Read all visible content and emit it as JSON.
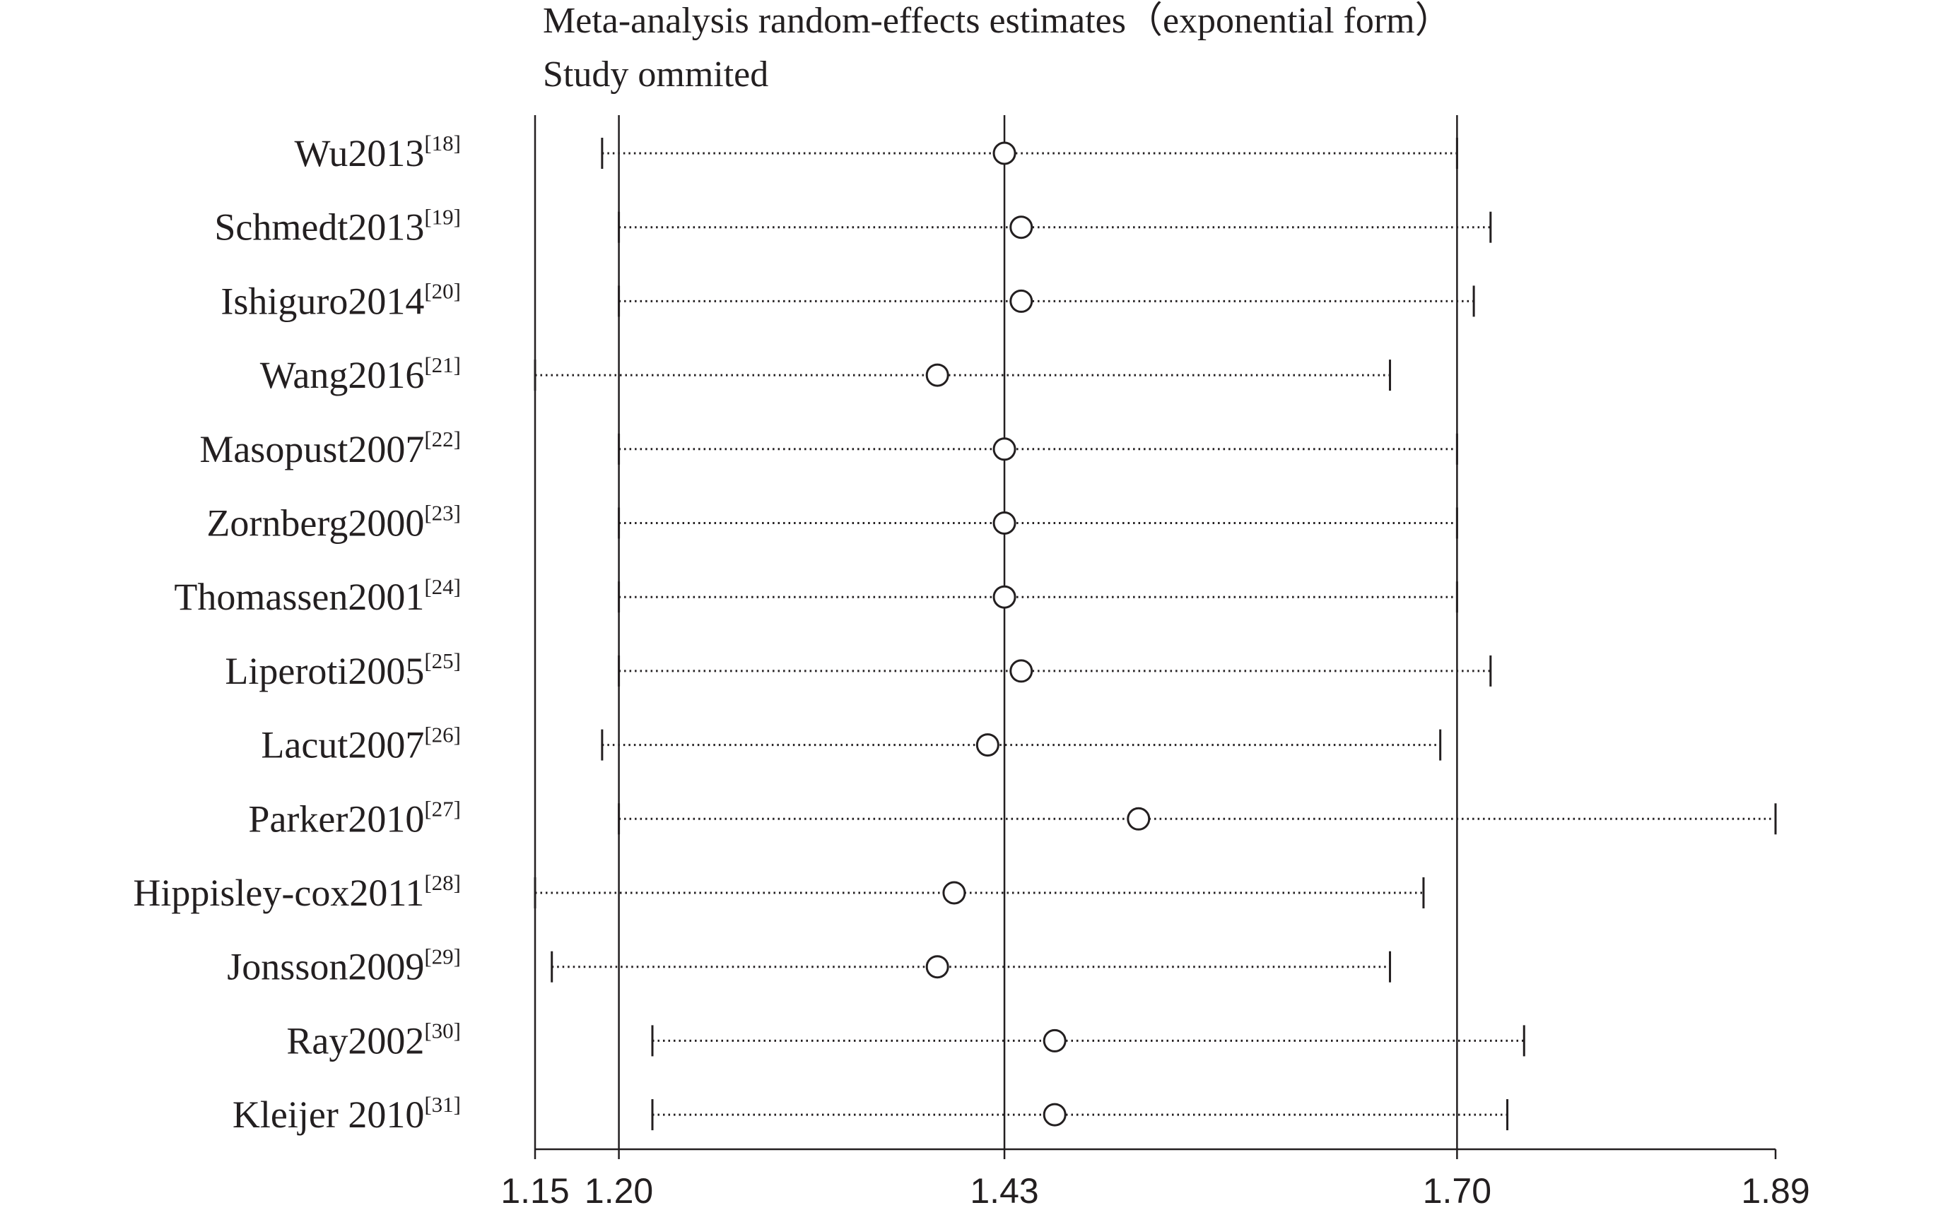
{
  "chart_data": {
    "type": "scatter",
    "subtype": "forest-plot-sensitivity",
    "title_lines": [
      "Meta-analysis random-effects estimates（exponential form）",
      "Study ommited"
    ],
    "xlabel": "",
    "ylabel": "",
    "xlim": [
      1.15,
      1.89
    ],
    "x_ticks": [
      1.15,
      1.2,
      1.43,
      1.7,
      1.89
    ],
    "x_tick_labels": [
      "1.15",
      "1.20",
      "1.43",
      "1.70",
      "1.89"
    ],
    "reference_lines": [
      1.2,
      1.43,
      1.7
    ],
    "studies": [
      {
        "name": "Wu2013",
        "ref": "[18]",
        "estimate": 1.43,
        "lower": 1.19,
        "upper": 1.7
      },
      {
        "name": "Schmedt2013",
        "ref": "[19]",
        "estimate": 1.44,
        "lower": 1.2,
        "upper": 1.72
      },
      {
        "name": "Ishiguro2014",
        "ref": "[20]",
        "estimate": 1.44,
        "lower": 1.2,
        "upper": 1.71
      },
      {
        "name": "Wang2016",
        "ref": "[21]",
        "estimate": 1.39,
        "lower": 1.15,
        "upper": 1.66
      },
      {
        "name": "Masopust2007",
        "ref": "[22]",
        "estimate": 1.43,
        "lower": 1.2,
        "upper": 1.7
      },
      {
        "name": "Zornberg2000",
        "ref": "[23]",
        "estimate": 1.43,
        "lower": 1.2,
        "upper": 1.7
      },
      {
        "name": "Thomassen2001",
        "ref": "[24]",
        "estimate": 1.43,
        "lower": 1.2,
        "upper": 1.7
      },
      {
        "name": "Liperoti2005",
        "ref": "[25]",
        "estimate": 1.44,
        "lower": 1.2,
        "upper": 1.72
      },
      {
        "name": "Lacut2007",
        "ref": "[26]",
        "estimate": 1.42,
        "lower": 1.19,
        "upper": 1.69
      },
      {
        "name": "Parker2010",
        "ref": "[27]",
        "estimate": 1.51,
        "lower": 1.2,
        "upper": 1.89
      },
      {
        "name": "Hippisley-cox2011",
        "ref": "[28]",
        "estimate": 1.4,
        "lower": 1.15,
        "upper": 1.68
      },
      {
        "name": "Jonsson2009",
        "ref": "[29]",
        "estimate": 1.39,
        "lower": 1.16,
        "upper": 1.66
      },
      {
        "name": "Ray2002",
        "ref": "[30]",
        "estimate": 1.46,
        "lower": 1.22,
        "upper": 1.74
      },
      {
        "name": "Kleijer 2010",
        "ref": "[31]",
        "estimate": 1.46,
        "lower": 1.22,
        "upper": 1.73
      }
    ],
    "grid": false,
    "legend": "none",
    "colors": {
      "ink": "#231f20",
      "background": "#ffffff"
    }
  }
}
